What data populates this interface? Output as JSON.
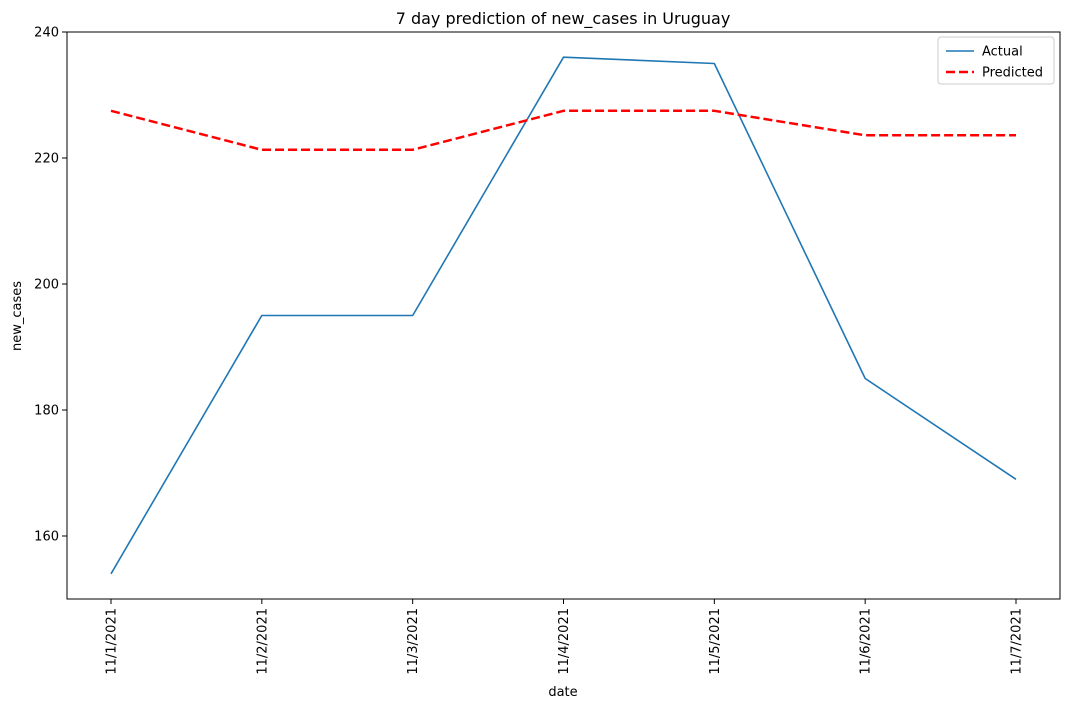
{
  "chart_data": {
    "type": "line",
    "title": "7 day prediction of new_cases in Uruguay",
    "xlabel": "date",
    "ylabel": "new_cases",
    "categories": [
      "11/1/2021",
      "11/2/2021",
      "11/3/2021",
      "11/4/2021",
      "11/5/2021",
      "11/6/2021",
      "11/7/2021"
    ],
    "series": [
      {
        "name": "Actual",
        "values": [
          154,
          195,
          195,
          236,
          235,
          185,
          169
        ],
        "color": "#1f77b4",
        "style": "solid"
      },
      {
        "name": "Predicted",
        "values": [
          227.5,
          221.3,
          221.3,
          227.5,
          227.5,
          223.6,
          223.6
        ],
        "color": "#ff0000",
        "style": "dashed"
      }
    ],
    "ylim": [
      150,
      240
    ],
    "yticks": [
      160,
      180,
      200,
      220,
      240
    ],
    "grid": false,
    "legend_position": "top-right"
  }
}
